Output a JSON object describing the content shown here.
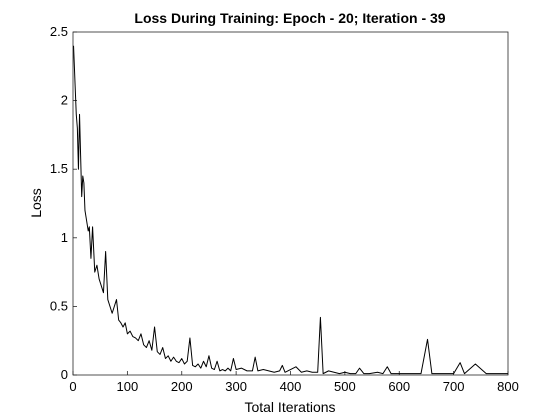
{
  "chart_data": {
    "type": "line",
    "title": "Loss During Training: Epoch - 20; Iteration - 39",
    "xlabel": "Total Iterations",
    "ylabel": "Loss",
    "xlim": [
      0,
      800
    ],
    "ylim": [
      0,
      2.5
    ],
    "xticks": [
      "0",
      "100",
      "200",
      "300",
      "400",
      "500",
      "600",
      "700",
      "800"
    ],
    "yticks": [
      "0",
      "0.5",
      "1",
      "1.5",
      "2",
      "2.5"
    ],
    "grid": false,
    "legend": "none",
    "line_color": "#000000",
    "series": [
      {
        "name": "",
        "x": [
          1,
          2,
          4,
          6,
          8,
          10,
          12,
          14,
          16,
          18,
          20,
          22,
          24,
          26,
          28,
          30,
          33,
          36,
          40,
          44,
          48,
          52,
          56,
          60,
          64,
          68,
          72,
          76,
          80,
          84,
          88,
          92,
          96,
          100,
          105,
          110,
          115,
          120,
          125,
          130,
          135,
          140,
          145,
          150,
          155,
          160,
          165,
          170,
          175,
          180,
          185,
          190,
          195,
          200,
          205,
          210,
          215,
          220,
          225,
          230,
          235,
          240,
          245,
          250,
          255,
          260,
          265,
          270,
          275,
          280,
          285,
          290,
          295,
          300,
          310,
          320,
          330,
          335,
          340,
          350,
          360,
          370,
          380,
          385,
          390,
          400,
          410,
          420,
          430,
          440,
          450,
          455,
          460,
          470,
          480,
          490,
          500,
          510,
          520,
          527,
          535,
          545,
          560,
          570,
          578,
          585,
          600,
          620,
          640,
          652,
          660,
          680,
          700,
          712,
          720,
          740,
          760,
          775,
          790,
          800
        ],
        "values": [
          2.4,
          2.3,
          2.1,
          1.9,
          1.8,
          1.5,
          1.9,
          1.6,
          1.3,
          1.45,
          1.4,
          1.2,
          1.15,
          1.1,
          1.05,
          1.08,
          0.85,
          1.08,
          0.75,
          0.8,
          0.7,
          0.65,
          0.6,
          0.9,
          0.55,
          0.5,
          0.45,
          0.5,
          0.55,
          0.4,
          0.38,
          0.35,
          0.38,
          0.3,
          0.32,
          0.28,
          0.27,
          0.25,
          0.3,
          0.22,
          0.2,
          0.25,
          0.18,
          0.35,
          0.17,
          0.15,
          0.2,
          0.12,
          0.14,
          0.1,
          0.13,
          0.1,
          0.09,
          0.12,
          0.08,
          0.1,
          0.27,
          0.07,
          0.06,
          0.08,
          0.05,
          0.1,
          0.06,
          0.14,
          0.05,
          0.04,
          0.1,
          0.03,
          0.04,
          0.03,
          0.05,
          0.03,
          0.12,
          0.04,
          0.05,
          0.03,
          0.03,
          0.13,
          0.03,
          0.04,
          0.03,
          0.02,
          0.03,
          0.07,
          0.02,
          0.04,
          0.06,
          0.02,
          0.03,
          0.02,
          0.02,
          0.42,
          0.01,
          0.03,
          0.02,
          0.01,
          0.02,
          0.01,
          0.01,
          0.05,
          0.01,
          0.01,
          0.02,
          0.01,
          0.06,
          0.01,
          0.01,
          0.01,
          0.01,
          0.26,
          0.01,
          0.01,
          0.01,
          0.09,
          0.01,
          0.08,
          0.01,
          0.01,
          0.01,
          0.01
        ]
      }
    ]
  }
}
